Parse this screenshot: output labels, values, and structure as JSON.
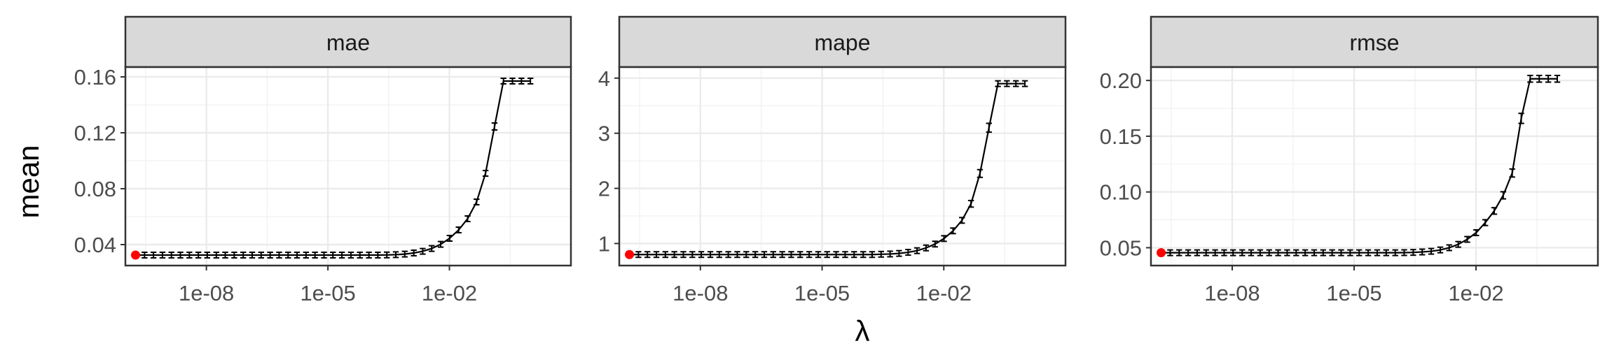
{
  "figure": {
    "ylabel": "mean",
    "xlabel": "λ"
  },
  "chart_data": [
    {
      "type": "line",
      "panel": "mae",
      "xscale": "log10",
      "xlim": [
        1e-10,
        10
      ],
      "ylim": [
        0.025,
        0.167
      ],
      "x_ticks": [
        1e-08,
        1e-05,
        0.01
      ],
      "x_tick_labels": [
        "1e-08",
        "1e-05",
        "1e-02"
      ],
      "y_ticks": [
        0.04,
        0.08,
        0.12,
        0.16
      ],
      "y_tick_labels": [
        "0.04",
        "0.08",
        "0.12",
        "0.16"
      ],
      "grid": true,
      "x": [
        1.78e-10,
        2.97e-10,
        4.94e-10,
        8.23e-10,
        1.37e-09,
        2.28e-09,
        3.8e-09,
        6.33e-09,
        1.05e-08,
        1.76e-08,
        2.92e-08,
        4.87e-08,
        8.11e-08,
        1.35e-07,
        2.25e-07,
        3.75e-07,
        6.24e-07,
        1.04e-06,
        1.73e-06,
        2.88e-06,
        4.8e-06,
        8e-06,
        1.33e-05,
        2.22e-05,
        3.7e-05,
        6.16e-05,
        0.000103,
        0.000171,
        0.000285,
        0.000474,
        0.00079,
        0.00132,
        0.00219,
        0.00365,
        0.00608,
        0.0101,
        0.0169,
        0.0281,
        0.0468,
        0.0779,
        0.13,
        0.216,
        0.36,
        0.6,
        1
      ],
      "y": [
        0.0325,
        0.0325,
        0.0325,
        0.0325,
        0.0325,
        0.0325,
        0.0325,
        0.0325,
        0.0325,
        0.0325,
        0.0325,
        0.0325,
        0.0325,
        0.0325,
        0.0325,
        0.0325,
        0.0325,
        0.0325,
        0.0325,
        0.0325,
        0.0325,
        0.0325,
        0.0325,
        0.0325,
        0.0325,
        0.0325,
        0.0325,
        0.0325,
        0.0326,
        0.0328,
        0.0332,
        0.034,
        0.0352,
        0.0372,
        0.0402,
        0.0445,
        0.0505,
        0.0585,
        0.0705,
        0.091,
        0.1245,
        0.157,
        0.157,
        0.157,
        0.157
      ],
      "err": [
        0.0008,
        0.0008,
        0.0008,
        0.0008,
        0.0008,
        0.0008,
        0.0008,
        0.0008,
        0.0008,
        0.0008,
        0.0008,
        0.0008,
        0.0008,
        0.0008,
        0.0008,
        0.0008,
        0.0008,
        0.0008,
        0.0008,
        0.0008,
        0.0008,
        0.0008,
        0.0008,
        0.0008,
        0.0008,
        0.0008,
        0.0008,
        0.0008,
        0.0008,
        0.0008,
        0.0008,
        0.0009,
        0.0009,
        0.001,
        0.0011,
        0.0012,
        0.0014,
        0.0016,
        0.0018,
        0.002,
        0.0025,
        0.0015,
        0.0015,
        0.0015,
        0.0015
      ],
      "highlight": {
        "x": 1.78e-10,
        "y": 0.0325,
        "color": "#ff0000"
      }
    },
    {
      "type": "line",
      "panel": "mape",
      "xscale": "log10",
      "xlim": [
        1e-10,
        10
      ],
      "ylim": [
        0.6,
        4.2
      ],
      "x_ticks": [
        1e-08,
        1e-05,
        0.01
      ],
      "x_tick_labels": [
        "1e-08",
        "1e-05",
        "1e-02"
      ],
      "y_ticks": [
        1,
        2,
        3,
        4
      ],
      "y_tick_labels": [
        "1",
        "2",
        "3",
        "4"
      ],
      "grid": true,
      "x": [
        1.78e-10,
        2.97e-10,
        4.94e-10,
        8.23e-10,
        1.37e-09,
        2.28e-09,
        3.8e-09,
        6.33e-09,
        1.05e-08,
        1.76e-08,
        2.92e-08,
        4.87e-08,
        8.11e-08,
        1.35e-07,
        2.25e-07,
        3.75e-07,
        6.24e-07,
        1.04e-06,
        1.73e-06,
        2.88e-06,
        4.8e-06,
        8e-06,
        1.33e-05,
        2.22e-05,
        3.7e-05,
        6.16e-05,
        0.000103,
        0.000171,
        0.000285,
        0.000474,
        0.00079,
        0.00132,
        0.00219,
        0.00365,
        0.00608,
        0.0101,
        0.0169,
        0.0281,
        0.0468,
        0.0779,
        0.13,
        0.216,
        0.36,
        0.6,
        1
      ],
      "y": [
        0.8,
        0.8,
        0.8,
        0.8,
        0.8,
        0.8,
        0.8,
        0.8,
        0.8,
        0.8,
        0.8,
        0.8,
        0.8,
        0.8,
        0.8,
        0.8,
        0.8,
        0.8,
        0.8,
        0.8,
        0.8,
        0.8,
        0.8,
        0.8,
        0.8,
        0.8,
        0.8,
        0.8,
        0.805,
        0.81,
        0.82,
        0.84,
        0.87,
        0.92,
        0.99,
        1.09,
        1.23,
        1.42,
        1.72,
        2.27,
        3.1,
        3.9,
        3.9,
        3.9,
        3.9
      ],
      "err": [
        0.03,
        0.03,
        0.03,
        0.03,
        0.03,
        0.03,
        0.03,
        0.03,
        0.03,
        0.03,
        0.03,
        0.03,
        0.03,
        0.03,
        0.03,
        0.03,
        0.03,
        0.03,
        0.03,
        0.03,
        0.03,
        0.03,
        0.03,
        0.03,
        0.03,
        0.03,
        0.03,
        0.03,
        0.03,
        0.03,
        0.03,
        0.03,
        0.03,
        0.03,
        0.035,
        0.04,
        0.045,
        0.05,
        0.06,
        0.07,
        0.08,
        0.05,
        0.05,
        0.05,
        0.05
      ],
      "highlight": {
        "x": 1.78e-10,
        "y": 0.8,
        "color": "#ff0000"
      }
    },
    {
      "type": "line",
      "panel": "rmse",
      "xscale": "log10",
      "xlim": [
        1e-10,
        10
      ],
      "ylim": [
        0.034,
        0.212
      ],
      "x_ticks": [
        1e-08,
        1e-05,
        0.01
      ],
      "x_tick_labels": [
        "1e-08",
        "1e-05",
        "1e-02"
      ],
      "y_ticks": [
        0.05,
        0.1,
        0.15,
        0.2
      ],
      "y_tick_labels": [
        "0.05",
        "0.10",
        "0.15",
        "0.20"
      ],
      "grid": true,
      "x": [
        1.78e-10,
        2.97e-10,
        4.94e-10,
        8.23e-10,
        1.37e-09,
        2.28e-09,
        3.8e-09,
        6.33e-09,
        1.05e-08,
        1.76e-08,
        2.92e-08,
        4.87e-08,
        8.11e-08,
        1.35e-07,
        2.25e-07,
        3.75e-07,
        6.24e-07,
        1.04e-06,
        1.73e-06,
        2.88e-06,
        4.8e-06,
        8e-06,
        1.33e-05,
        2.22e-05,
        3.7e-05,
        6.16e-05,
        0.000103,
        0.000171,
        0.000285,
        0.000474,
        0.00079,
        0.00132,
        0.00219,
        0.00365,
        0.00608,
        0.0101,
        0.0169,
        0.0281,
        0.0468,
        0.0779,
        0.13,
        0.216,
        0.36,
        0.6,
        1
      ],
      "y": [
        0.0455,
        0.0455,
        0.0455,
        0.0455,
        0.0455,
        0.0455,
        0.0455,
        0.0455,
        0.0455,
        0.0455,
        0.0455,
        0.0455,
        0.0455,
        0.0455,
        0.0455,
        0.0455,
        0.0455,
        0.0455,
        0.0455,
        0.0455,
        0.0455,
        0.0455,
        0.0455,
        0.0455,
        0.0455,
        0.0455,
        0.0455,
        0.0456,
        0.0458,
        0.0462,
        0.0468,
        0.048,
        0.05,
        0.053,
        0.0575,
        0.0635,
        0.0725,
        0.083,
        0.097,
        0.117,
        0.166,
        0.2015,
        0.2015,
        0.2015,
        0.2015
      ],
      "err": [
        0.0018,
        0.0018,
        0.0018,
        0.0018,
        0.0018,
        0.0018,
        0.0018,
        0.0018,
        0.0018,
        0.0018,
        0.0018,
        0.0018,
        0.0018,
        0.0018,
        0.0018,
        0.0018,
        0.0018,
        0.0018,
        0.0018,
        0.0018,
        0.0018,
        0.0018,
        0.0018,
        0.0018,
        0.0018,
        0.0018,
        0.0018,
        0.0018,
        0.0018,
        0.0018,
        0.0018,
        0.0019,
        0.002,
        0.0021,
        0.0022,
        0.0024,
        0.0026,
        0.0029,
        0.0032,
        0.0036,
        0.0045,
        0.003,
        0.003,
        0.003,
        0.003
      ],
      "highlight": {
        "x": 1.78e-10,
        "y": 0.0455,
        "color": "#ff0000"
      }
    }
  ]
}
